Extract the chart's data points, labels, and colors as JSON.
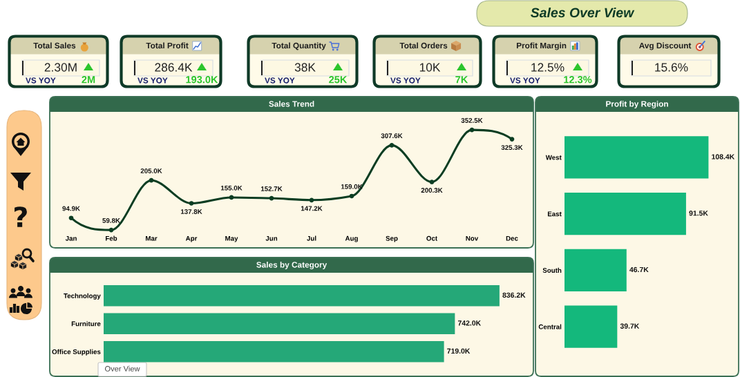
{
  "chart_data": [
    {
      "type": "other",
      "title": "Sales Over View"
    },
    {
      "type": "other",
      "title": "Total Sales",
      "annotations": [
        "2.30M",
        "VS YOY",
        "2M"
      ]
    },
    {
      "type": "other",
      "title": "Total Profit",
      "annotations": [
        "286.4K",
        "VS YOY",
        "193.0K"
      ]
    },
    {
      "type": "other",
      "title": "Total Quantity",
      "annotations": [
        "38K",
        "VS YOY",
        "25K"
      ]
    },
    {
      "type": "other",
      "title": "Total Orders",
      "annotations": [
        "10K",
        "VS YOY",
        "7K"
      ]
    },
    {
      "type": "other",
      "title": "Profit Margin",
      "annotations": [
        "12.5%",
        "VS YOY",
        "12.3%"
      ]
    },
    {
      "type": "other",
      "title": "Avg Discount",
      "annotations": [
        "15.6%"
      ]
    },
    {
      "type": "other",
      "annotations": [
        "Over View"
      ]
    },
    {
      "type": "line",
      "title": "Sales Trend",
      "categories": [
        "Jan",
        "Feb",
        "Mar",
        "Apr",
        "May",
        "Jun",
        "Jul",
        "Aug",
        "Sep",
        "Oct",
        "Nov",
        "Dec"
      ],
      "values": [
        94.9,
        59.8,
        205.0,
        137.8,
        155.0,
        152.7,
        147.2,
        159.0,
        307.6,
        200.3,
        352.5,
        325.3
      ],
      "value_labels": [
        "94.9K",
        "59.8K",
        "205.0K",
        "137.8K",
        "155.0K",
        "152.7K",
        "147.2K",
        "159.0K",
        "307.6K",
        "200.3K",
        "352.5K",
        "325.3K"
      ],
      "color": "#0b3d22",
      "marker": "circle",
      "line_style": "solid",
      "tick_labels": "x"
    },
    {
      "type": "bar",
      "orientation": "horizontal",
      "title": "Profit by Region",
      "categories": [
        "West",
        "East",
        "South",
        "Central"
      ],
      "values": [
        108.4,
        91.5,
        46.7,
        39.7
      ],
      "value_labels": [
        "108.4K",
        "91.5K",
        "46.7K",
        "39.7K"
      ],
      "color": "#14b87c",
      "tick_labels": "y"
    },
    {
      "type": "bar",
      "orientation": "horizontal",
      "title": "Sales by Category",
      "categories": [
        "Technology",
        "Furniture",
        "Office Supplies"
      ],
      "values": [
        836.2,
        742.0,
        719.0
      ],
      "value_labels": [
        "836.2K",
        "742.0K",
        "719.0K"
      ],
      "color": "#25a878",
      "tick_labels": "y"
    }
  ]
}
